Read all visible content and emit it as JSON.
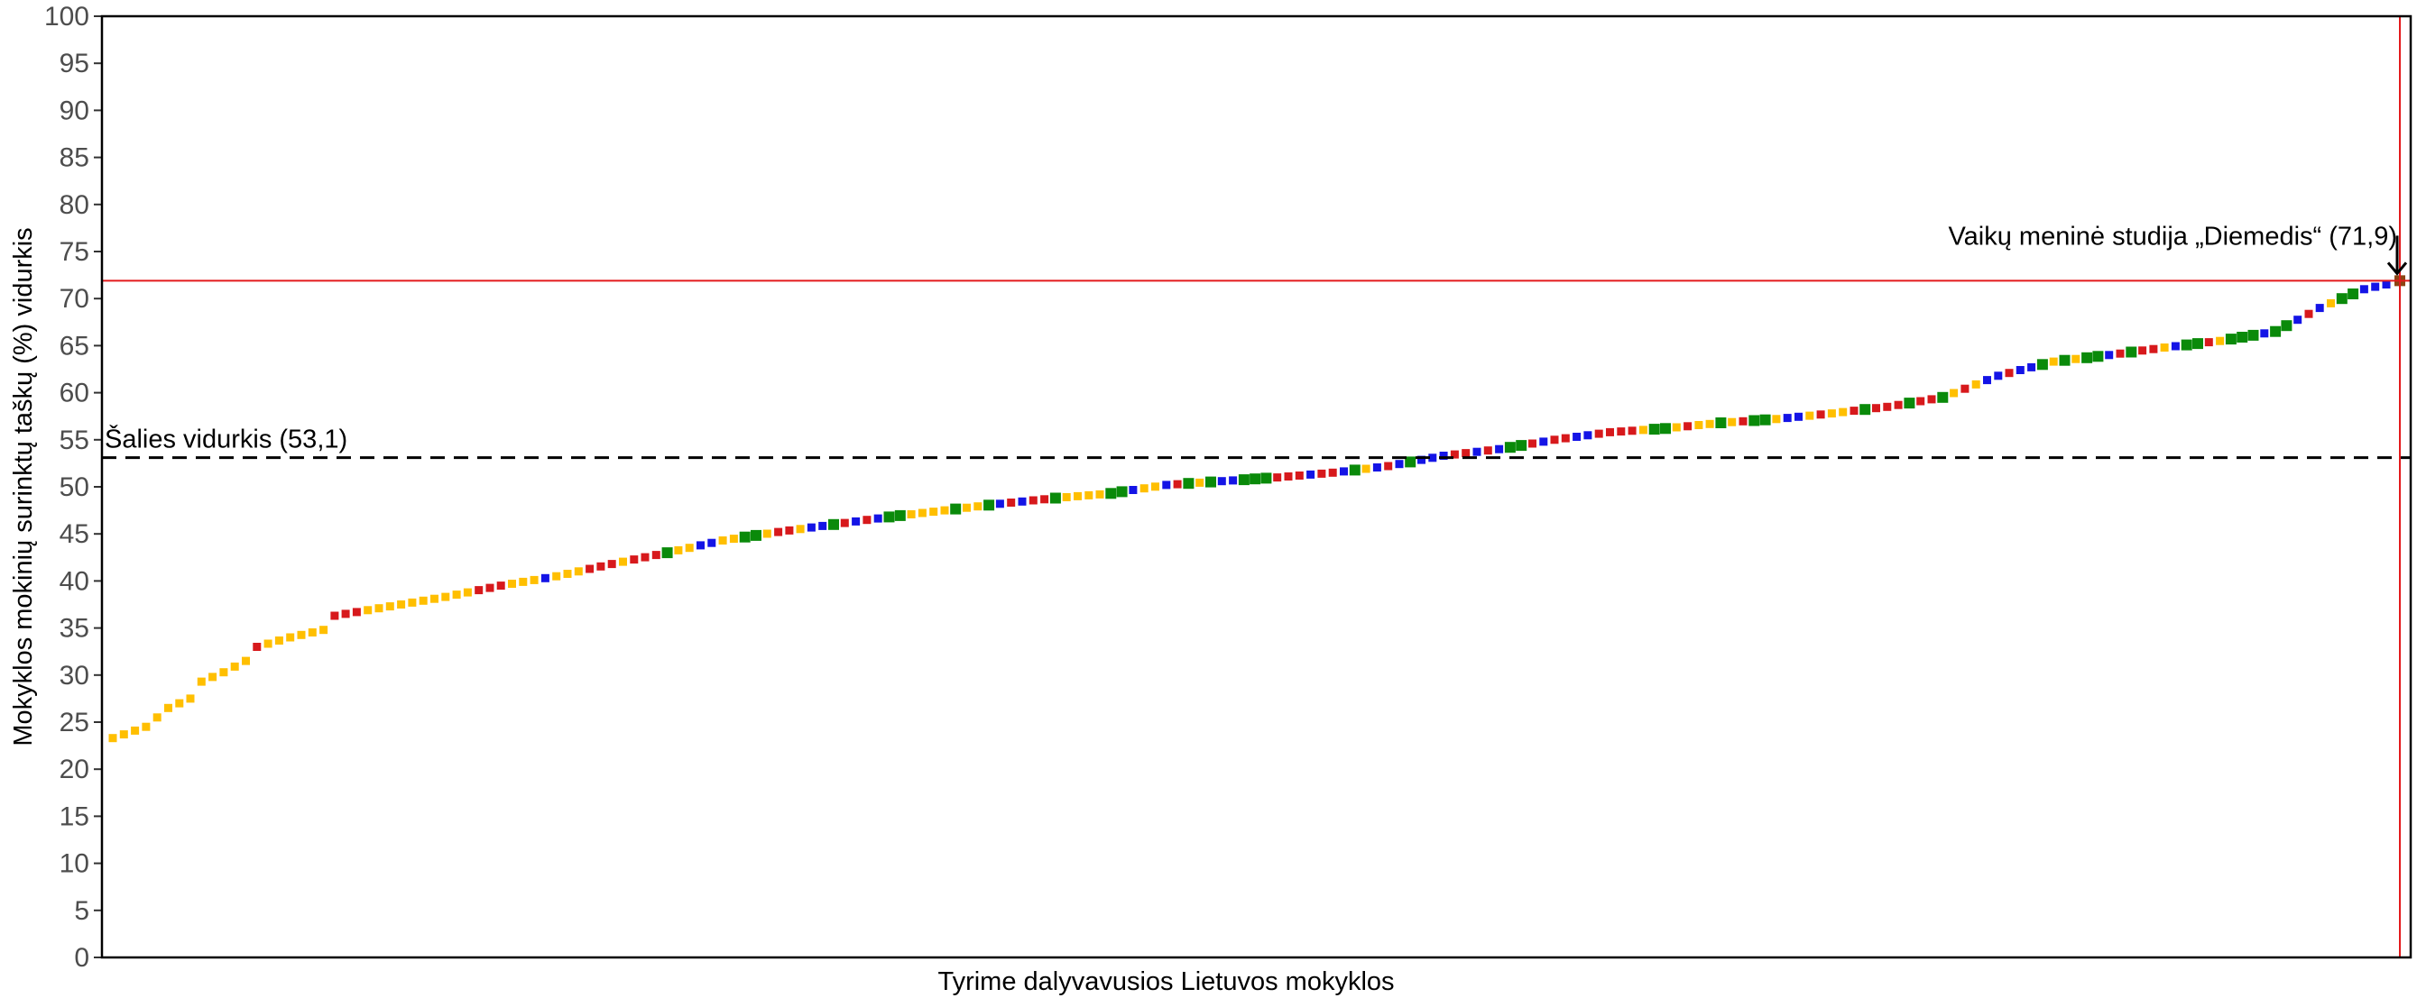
{
  "chart_data": {
    "type": "scatter",
    "title": "",
    "xlabel": "Tyrime dalyvavusios Lietuvos mokyklos",
    "ylabel": "Mokyklos mokinių surinktų taškų (%) vidurkis",
    "ylim": [
      0,
      100
    ],
    "yticks": [
      0,
      5,
      10,
      15,
      20,
      25,
      30,
      35,
      40,
      45,
      50,
      55,
      60,
      65,
      70,
      75,
      80,
      85,
      90,
      95,
      100
    ],
    "grid": false,
    "legend": "none",
    "colors": {
      "yellow": "#ffbf00",
      "red": "#d7191c",
      "blue": "#1414e6",
      "green": "#0a8a0a",
      "highlight": "#8b4513",
      "reference_line": "#e31a1c",
      "mean_line": "#000000"
    },
    "national_mean": {
      "value": 53.1,
      "label": "Šalies vidurkis (53,1)"
    },
    "highlight": {
      "name": "Vaikų meninė studija „Diemedis“",
      "value": 71.9,
      "label": "Vaikų meninė studija „Diemedis“ (71,9)"
    },
    "anchors": [
      [
        0,
        23.3
      ],
      [
        3,
        24.5
      ],
      [
        5,
        26.5
      ],
      [
        7,
        27.5
      ],
      [
        8,
        29.3
      ],
      [
        10,
        30.3
      ],
      [
        12,
        31.5
      ],
      [
        13,
        33.0
      ],
      [
        16,
        34.0
      ],
      [
        19,
        34.8
      ],
      [
        20,
        36.3
      ],
      [
        25,
        37.3
      ],
      [
        30,
        38.3
      ],
      [
        35,
        39.5
      ],
      [
        40,
        40.5
      ],
      [
        45,
        41.8
      ],
      [
        50,
        43.0
      ],
      [
        55,
        44.3
      ],
      [
        60,
        45.2
      ],
      [
        65,
        46.0
      ],
      [
        70,
        46.8
      ],
      [
        75,
        47.5
      ],
      [
        80,
        48.2
      ],
      [
        85,
        48.8
      ],
      [
        90,
        49.3
      ],
      [
        95,
        50.2
      ],
      [
        100,
        50.6
      ],
      [
        105,
        51.0
      ],
      [
        110,
        51.5
      ],
      [
        115,
        52.2
      ],
      [
        120,
        53.3
      ],
      [
        125,
        54.0
      ],
      [
        130,
        55.0
      ],
      [
        135,
        55.8
      ],
      [
        140,
        56.2
      ],
      [
        145,
        56.8
      ],
      [
        150,
        57.2
      ],
      [
        155,
        57.8
      ],
      [
        160,
        58.5
      ],
      [
        165,
        59.5
      ],
      [
        170,
        61.8
      ],
      [
        175,
        63.3
      ],
      [
        180,
        64.0
      ],
      [
        185,
        64.8
      ],
      [
        190,
        65.5
      ],
      [
        195,
        66.5
      ],
      [
        199,
        69.0
      ],
      [
        203,
        71.0
      ],
      [
        205,
        71.5
      ]
    ],
    "color_pattern": [
      "yellow",
      "yellow",
      "yellow",
      "yellow",
      "yellow",
      "yellow",
      "yellow",
      "yellow",
      "yellow",
      "yellow",
      "yellow",
      "yellow",
      "yellow",
      "red",
      "yellow",
      "yellow",
      "yellow",
      "yellow",
      "yellow",
      "yellow",
      "red",
      "red",
      "red",
      "yellow",
      "yellow",
      "yellow",
      "yellow",
      "yellow",
      "yellow",
      "yellow",
      "yellow",
      "yellow",
      "yellow",
      "red",
      "red",
      "red",
      "yellow",
      "yellow",
      "yellow",
      "blue",
      "yellow",
      "yellow",
      "yellow",
      "red",
      "red",
      "red",
      "yellow",
      "red",
      "red",
      "red",
      "green",
      "yellow",
      "yellow",
      "blue",
      "blue",
      "yellow",
      "yellow",
      "green",
      "green",
      "yellow",
      "red",
      "red",
      "yellow",
      "blue",
      "blue",
      "green",
      "red",
      "blue",
      "red",
      "blue",
      "green",
      "green",
      "yellow",
      "yellow",
      "yellow",
      "yellow",
      "green",
      "yellow",
      "yellow",
      "green",
      "blue",
      "red",
      "blue",
      "red",
      "red",
      "green",
      "yellow",
      "yellow",
      "yellow",
      "yellow",
      "green",
      "green",
      "blue",
      "yellow",
      "yellow",
      "blue",
      "red",
      "green",
      "yellow",
      "green",
      "blue",
      "blue",
      "green",
      "green",
      "green",
      "red",
      "red",
      "red",
      "blue",
      "red",
      "red",
      "blue",
      "green",
      "yellow",
      "blue",
      "red",
      "blue",
      "green",
      "blue",
      "blue",
      "blue",
      "red",
      "red",
      "blue",
      "red",
      "blue",
      "green",
      "green",
      "red",
      "blue",
      "red",
      "red",
      "blue",
      "blue",
      "red",
      "red",
      "red",
      "red",
      "yellow",
      "green",
      "green",
      "yellow",
      "red",
      "yellow",
      "yellow",
      "green",
      "yellow",
      "red",
      "green",
      "green",
      "yellow",
      "blue",
      "blue",
      "yellow",
      "red",
      "yellow",
      "yellow",
      "red",
      "green",
      "red",
      "red",
      "red",
      "green",
      "red",
      "red",
      "green",
      "yellow",
      "red",
      "yellow",
      "blue",
      "blue",
      "red",
      "blue",
      "blue",
      "green",
      "yellow",
      "green",
      "yellow",
      "green",
      "green",
      "blue",
      "red",
      "green",
      "red",
      "red",
      "yellow",
      "blue",
      "green",
      "green",
      "red",
      "yellow",
      "green",
      "green",
      "green",
      "blue",
      "green",
      "green",
      "blue",
      "red",
      "blue",
      "yellow",
      "green",
      "green",
      "blue",
      "blue",
      "blue"
    ]
  }
}
